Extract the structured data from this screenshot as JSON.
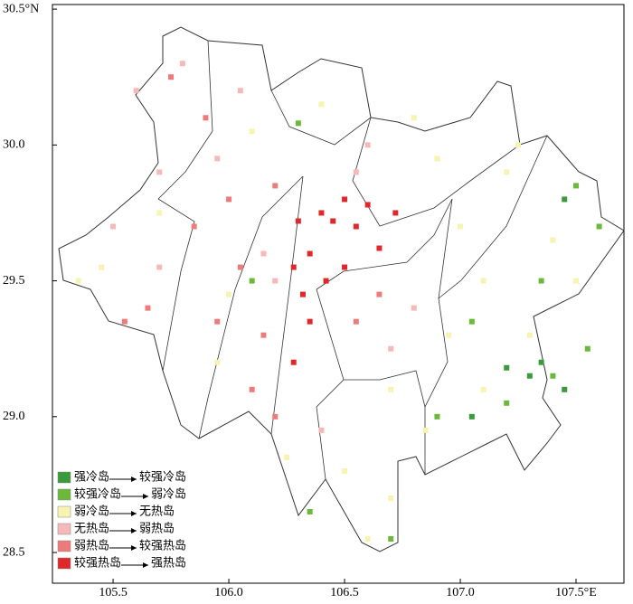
{
  "chart_data": {
    "type": "scatter",
    "xlim": [
      105.238,
      107.707
    ],
    "ylim": [
      28.387,
      30.517
    ],
    "xticks": [
      105.5,
      {
        "value": 106.0,
        "label": "106.0"
      },
      106.5,
      {
        "value": 107.0,
        "label": "107.0"
      },
      {
        "value": 107.5,
        "label": "107.5°E"
      }
    ],
    "yticks": [
      28.5,
      {
        "value": 29.0,
        "label": "29.0"
      },
      29.5,
      {
        "value": 30.0,
        "label": "30.0"
      },
      {
        "value": 30.5,
        "label": "30.5°N"
      }
    ],
    "series": [
      {
        "from": "强冷岛",
        "to": "较强冷岛",
        "color": "#3b9a3b",
        "x": [
          107.3,
          107.2,
          107.05,
          107.45,
          107.35,
          107.45
        ],
        "y": [
          29.15,
          29.18,
          29.0,
          29.8,
          29.2,
          29.1
        ]
      },
      {
        "from": "较强冷岛",
        "to": "弱冷岛",
        "color": "#6cb83a",
        "x": [
          107.5,
          107.2,
          107.4,
          106.3,
          107.6,
          107.35,
          107.05,
          106.1,
          106.35,
          106.7,
          106.9,
          107.55
        ],
        "y": [
          29.85,
          29.05,
          29.15,
          30.08,
          29.7,
          29.5,
          29.35,
          29.5,
          28.65,
          28.55,
          29.0,
          29.25
        ]
      },
      {
        "from": "弱冷岛",
        "to": "无热岛",
        "color": "#f7f4b2",
        "x": [
          105.45,
          105.35,
          106.1,
          106.9,
          107.2,
          107.4,
          107.1,
          106.95,
          106.7,
          106.5,
          106.7,
          106.85,
          107.3,
          105.95,
          106.0,
          107.25,
          106.4,
          105.7,
          107.5,
          106.8,
          107.0,
          106.25,
          106.6,
          107.1
        ],
        "y": [
          29.55,
          29.5,
          30.05,
          29.95,
          29.9,
          29.65,
          29.5,
          29.3,
          29.1,
          28.8,
          28.7,
          28.95,
          29.3,
          29.2,
          29.45,
          30.0,
          30.15,
          29.75,
          29.5,
          30.1,
          29.7,
          28.85,
          28.55,
          29.1
        ]
      },
      {
        "from": "无热岛",
        "to": "弱热岛",
        "color": "#f6b9b9",
        "x": [
          105.6,
          105.8,
          106.05,
          105.95,
          106.6,
          105.5,
          106.15,
          106.55,
          106.4,
          106.8,
          105.7,
          106.2,
          106.7,
          105.7
        ],
        "y": [
          30.2,
          30.3,
          30.2,
          29.95,
          30.0,
          29.7,
          29.6,
          29.9,
          28.95,
          29.4,
          29.55,
          29.5,
          29.25,
          29.9
        ]
      },
      {
        "from": "弱热岛",
        "to": "较强热岛",
        "color": "#ee7b7b",
        "x": [
          105.85,
          105.65,
          105.95,
          106.15,
          106.05,
          105.9,
          105.75,
          106.1,
          106.2,
          106.55,
          106.65,
          106.0,
          105.55,
          106.2
        ],
        "y": [
          29.7,
          29.4,
          29.35,
          29.3,
          29.55,
          30.1,
          30.25,
          29.1,
          29.0,
          29.35,
          29.45,
          29.8,
          29.35,
          29.85
        ]
      },
      {
        "from": "较强热岛",
        "to": "强热岛",
        "color": "#e0282b",
        "x": [
          106.28,
          106.32,
          106.35,
          106.4,
          106.45,
          106.5,
          106.55,
          106.6,
          106.65,
          106.3,
          106.35,
          106.28,
          106.72,
          106.5,
          106.42
        ],
        "y": [
          29.55,
          29.45,
          29.6,
          29.75,
          29.72,
          29.8,
          29.7,
          29.78,
          29.62,
          29.72,
          29.35,
          29.2,
          29.75,
          29.55,
          29.5
        ]
      }
    ]
  }
}
